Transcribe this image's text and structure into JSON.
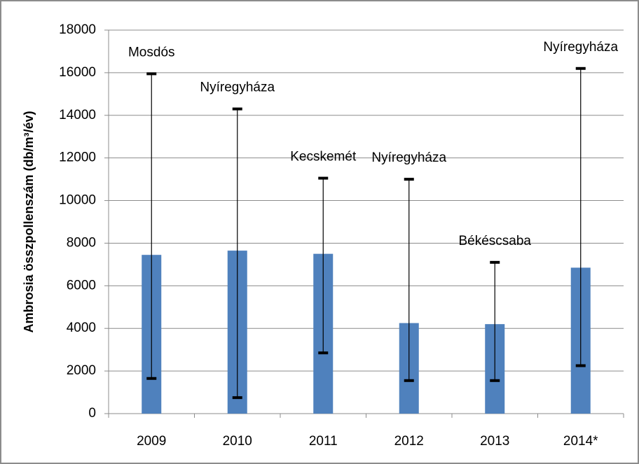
{
  "chart_data": {
    "type": "bar",
    "ylabel": "Ambrosia összpollenszám (db/m³/év)",
    "categories": [
      "2009",
      "2010",
      "2011",
      "2012",
      "2013",
      "2014*"
    ],
    "values": [
      7450,
      7650,
      7500,
      4250,
      4200,
      6850
    ],
    "min": [
      1650,
      750,
      2850,
      1550,
      1550,
      2250
    ],
    "max": [
      15950,
      14300,
      11050,
      11000,
      7100,
      16200
    ],
    "annotations": [
      "Mosdós",
      "Nyíregyháza",
      "Kecskemét",
      "Nyíregyháza",
      "Békéscsaba",
      "Nyíregyháza"
    ],
    "color": "#4f81bd",
    "ylim": [
      0,
      18000
    ],
    "yticks": [
      0,
      2000,
      4000,
      6000,
      8000,
      10000,
      12000,
      14000,
      16000,
      18000
    ],
    "grid": true
  }
}
